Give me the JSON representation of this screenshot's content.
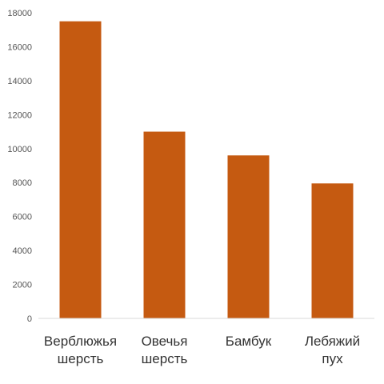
{
  "chart_data": {
    "type": "bar",
    "title": "",
    "xlabel": "",
    "ylabel": "",
    "categories": [
      [
        "Верблюжья",
        "шерсть"
      ],
      [
        "Овечья",
        "шерсть"
      ],
      [
        "Бамбук"
      ],
      [
        "Лебяжий",
        "пух"
      ]
    ],
    "values": [
      17500,
      11000,
      9600,
      7950
    ],
    "ylim": [
      0,
      18000
    ],
    "yticks": [
      0,
      2000,
      4000,
      6000,
      8000,
      10000,
      12000,
      14000,
      16000,
      18000
    ],
    "grid": false,
    "legend": "none",
    "bar_color": "#c55a11"
  }
}
